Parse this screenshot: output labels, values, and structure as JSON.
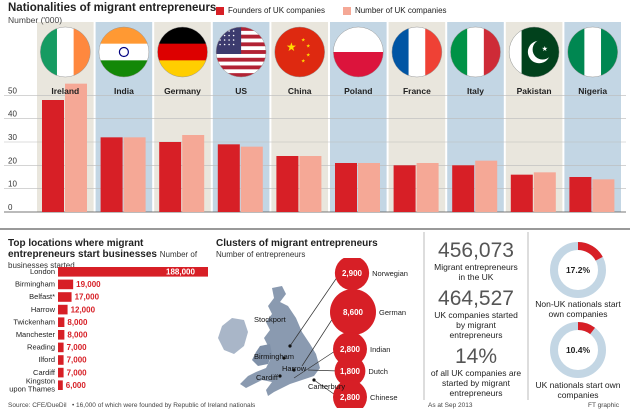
{
  "chart_data": [
    {
      "type": "bar",
      "title": "Nationalities of migrant entrepreneurs",
      "ylabel": "Number ('000)",
      "ylim": [
        0,
        60
      ],
      "yticks": [
        0,
        10,
        20,
        30,
        40,
        50
      ],
      "categories": [
        "Ireland",
        "India",
        "Germany",
        "US",
        "China",
        "Poland",
        "France",
        "Italy",
        "Pakistan",
        "Nigeria"
      ],
      "series": [
        {
          "name": "Founders of UK companies",
          "color": "#d71f26",
          "values": [
            48,
            32,
            30,
            29,
            24,
            21,
            20,
            20,
            16,
            15
          ]
        },
        {
          "name": "Number of UK companies",
          "color": "#f5a896",
          "values": [
            55,
            32,
            33,
            28,
            24,
            21,
            21,
            22,
            17,
            14
          ]
        }
      ],
      "legend": "top"
    },
    {
      "type": "bar",
      "orientation": "horizontal",
      "title": "Top locations where migrant entrepreneurs start businesses",
      "subtitle": "Number of businesses started",
      "categories": [
        "London",
        "Birmingham",
        "Belfast*",
        "Harrow",
        "Twickenham",
        "Manchester",
        "Reading",
        "Ilford",
        "Cardiff",
        "Kingston upon Thames"
      ],
      "values": [
        188000,
        19000,
        17000,
        12000,
        8000,
        8000,
        7000,
        7000,
        7000,
        6000
      ],
      "labels": [
        "188,000",
        "19,000",
        "17,000",
        "12,000",
        "8,000",
        "8,000",
        "7,000",
        "7,000",
        "7,000",
        "6,000"
      ]
    },
    {
      "type": "pie",
      "label": "Non-UK nationals start own companies",
      "values": [
        17.2,
        82.8
      ],
      "display": "17.2%"
    },
    {
      "type": "pie",
      "label": "UK nationals start own companies",
      "values": [
        10.4,
        89.6
      ],
      "display": "10.4%"
    }
  ],
  "clusters": {
    "title": "Clusters of migrant entrepreneurs",
    "subtitle": "Number of entrepreneurs",
    "bubbles": [
      {
        "value": 2900,
        "label": "2,900",
        "name": "Norwegian"
      },
      {
        "value": 8600,
        "label": "8,600",
        "name": "German"
      },
      {
        "value": 2800,
        "label": "2,800",
        "name": "Indian"
      },
      {
        "value": 1800,
        "label": "1,800",
        "name": "Dutch"
      },
      {
        "value": 2800,
        "label": "2,800",
        "name": "Chinese"
      }
    ],
    "places": [
      "Stockport",
      "Birmingham",
      "Harrow",
      "Cardiff",
      "Canterbury"
    ]
  },
  "stats": [
    {
      "number": "456,073",
      "text": "Migrant entrepreneurs in the UK"
    },
    {
      "number": "464,527",
      "text": "UK companies started by migrant entrepreneurs"
    },
    {
      "number": "14%",
      "text": "of all UK companies are started by migrant entrepreneurs"
    }
  ],
  "footer": {
    "source": "Source: CFE/DueDil",
    "note": "• 16,000 of which were founded by Republic of Ireland nationals",
    "as_at": "As at Sep 2013",
    "credit": "FT graphic"
  },
  "colors": {
    "dark": "#d71f26",
    "light": "#f5a896",
    "panel": "#e9e6dd",
    "panel_alt": "#c3d6e4",
    "map": "#8a9ab0"
  }
}
